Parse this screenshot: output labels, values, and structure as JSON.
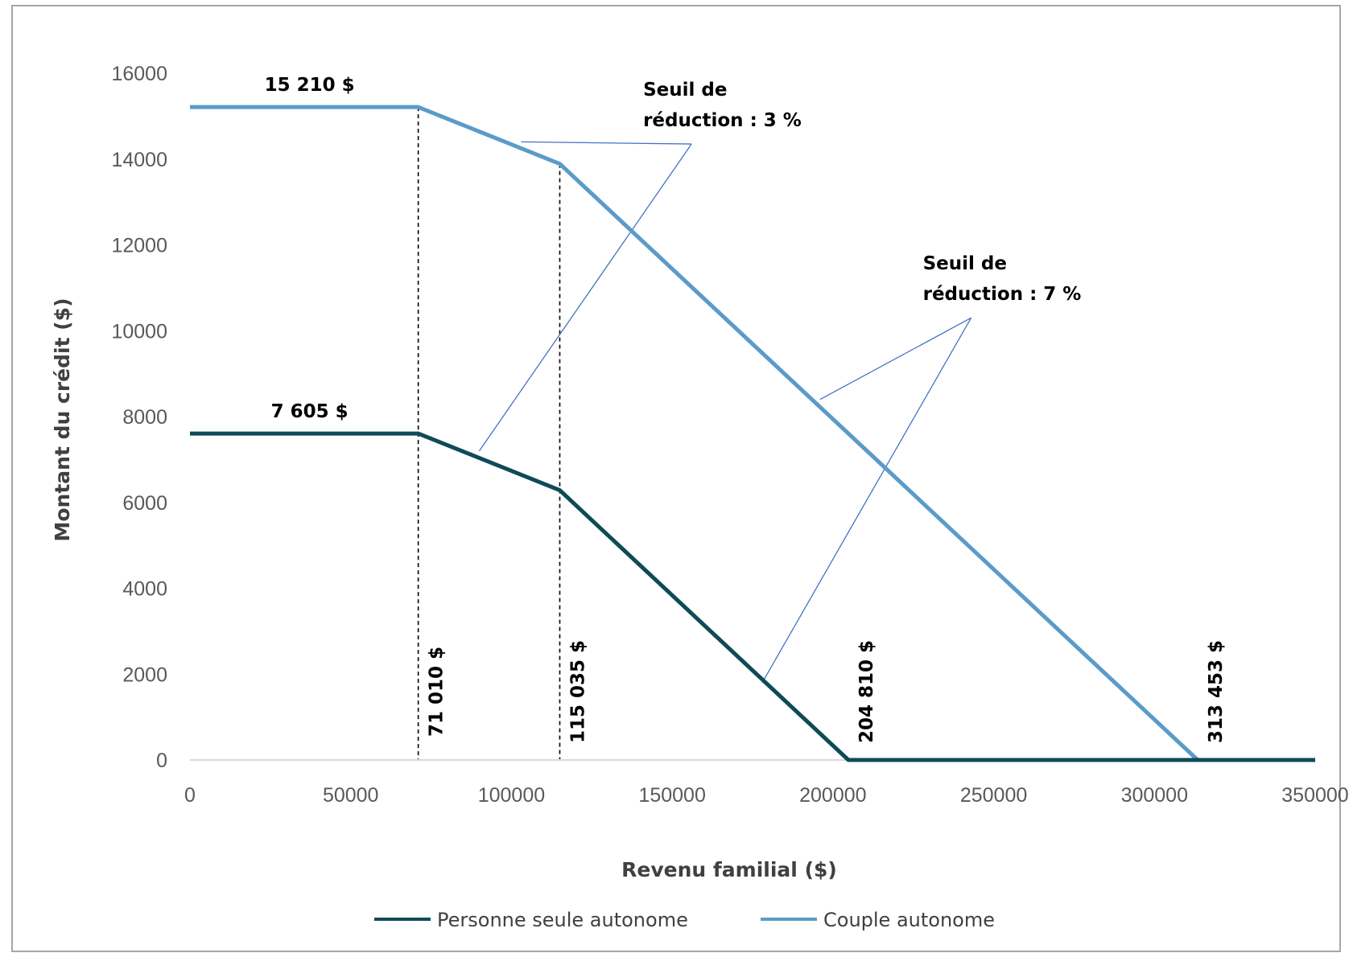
{
  "chart_data": {
    "type": "line",
    "title": "",
    "xlabel": "Revenu familial ($)",
    "ylabel": "Montant du crédit ($)",
    "xlim": [
      0,
      350000
    ],
    "ylim": [
      0,
      16000
    ],
    "x_ticks": [
      0,
      50000,
      100000,
      150000,
      200000,
      250000,
      300000,
      350000
    ],
    "y_ticks": [
      0,
      2000,
      4000,
      6000,
      8000,
      10000,
      12000,
      14000,
      16000
    ],
    "grid": false,
    "legend_position": "bottom",
    "series": [
      {
        "name": "Personne seule autonome",
        "color": "#0d4b57",
        "x": [
          0,
          71010,
          115035,
          204810,
          350000
        ],
        "y": [
          7605,
          7605,
          6284,
          0,
          0
        ]
      },
      {
        "name": "Couple autonome",
        "color": "#5b9bc8",
        "x": [
          0,
          71010,
          115035,
          313453,
          350000
        ],
        "y": [
          15210,
          15210,
          13889,
          0,
          0
        ]
      }
    ],
    "vertical_guides": [
      {
        "x": 71010,
        "y_top": 15210
      },
      {
        "x": 115035,
        "y_top": 13889
      }
    ],
    "point_labels": [
      {
        "text": "15 210 $",
        "x": 71010,
        "y": 15210
      },
      {
        "text": "7 605 $",
        "x": 71010,
        "y": 7605
      }
    ],
    "x_value_labels": [
      {
        "text": "71 010 $",
        "x": 71010
      },
      {
        "text": "115 035 $",
        "x": 115035
      },
      {
        "text": "204 810 $",
        "x": 204810
      },
      {
        "text": "313 453 $",
        "x": 313453
      }
    ],
    "callouts": [
      {
        "lines": [
          "Seuil de",
          "réduction : 3 %"
        ],
        "anchor": {
          "x": 156000,
          "y": 14350
        },
        "targets": [
          {
            "x": 103000,
            "y": 14400
          },
          {
            "x": 90000,
            "y": 7200
          }
        ]
      },
      {
        "lines": [
          "Seuil de",
          "réduction : 7 %"
        ],
        "anchor": {
          "x": 243000,
          "y": 10300
        },
        "targets": [
          {
            "x": 196000,
            "y": 8400
          },
          {
            "x": 178000,
            "y": 1800
          }
        ]
      }
    ]
  }
}
